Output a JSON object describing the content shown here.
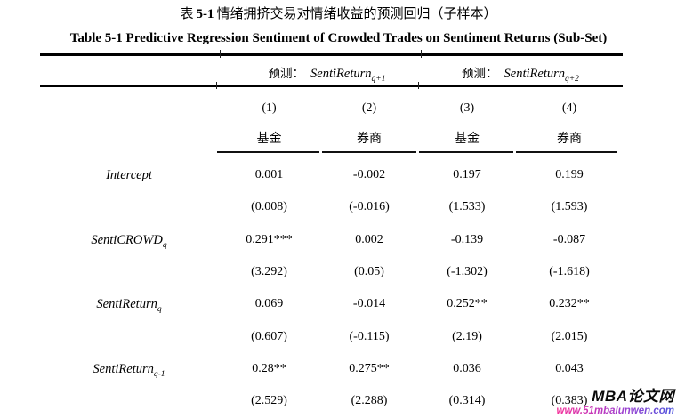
{
  "titles": {
    "cn_word": "表",
    "cn_number": "5-1",
    "cn_rest": "情绪拥挤交易对情绪收益的预测回归（子样本）",
    "en": "Table 5-1 Predictive Regression Sentiment of Crowded Trades on Sentiment Returns (Sub-Set)"
  },
  "table": {
    "groups": [
      {
        "prefix": "预测：",
        "variable": "SentiReturn",
        "subscript": "q+1"
      },
      {
        "prefix": "预测：",
        "variable": "SentiReturn",
        "subscript": "q+2"
      }
    ],
    "column_numbers": [
      "(1)",
      "(2)",
      "(3)",
      "(4)"
    ],
    "column_samples": [
      "基金",
      "券商",
      "基金",
      "券商"
    ],
    "rows": [
      {
        "variable": "Intercept",
        "subscript": "",
        "coefficients": [
          "0.001",
          "-0.002",
          "0.197",
          "0.199"
        ],
        "tstats": [
          "(0.008)",
          "(-0.016)",
          "(1.533)",
          "(1.593)"
        ]
      },
      {
        "variable": "SentiCROWD",
        "subscript": "q",
        "coefficients": [
          "0.291***",
          "0.002",
          "-0.139",
          "-0.087"
        ],
        "tstats": [
          "(3.292)",
          "(0.05)",
          "(-1.302)",
          "(-1.618)"
        ]
      },
      {
        "variable": "SentiReturn",
        "subscript": "q",
        "coefficients": [
          "0.069",
          "-0.014",
          "0.252**",
          "0.232**"
        ],
        "tstats": [
          "(0.607)",
          "(-0.115)",
          "(2.19)",
          "(2.015)"
        ]
      },
      {
        "variable": "SentiReturn",
        "subscript": "q-1",
        "coefficients": [
          "0.28**",
          "0.275**",
          "0.036",
          "0.043"
        ],
        "tstats": [
          "(2.529)",
          "(2.288)",
          "(0.314)",
          "(0.383)"
        ]
      }
    ]
  },
  "watermark": {
    "site_name": "MBA论文网",
    "site_url": "www.51mbalunwen.com",
    "url_gradient_start": "#f5309a",
    "url_gradient_end": "#4d55de"
  }
}
